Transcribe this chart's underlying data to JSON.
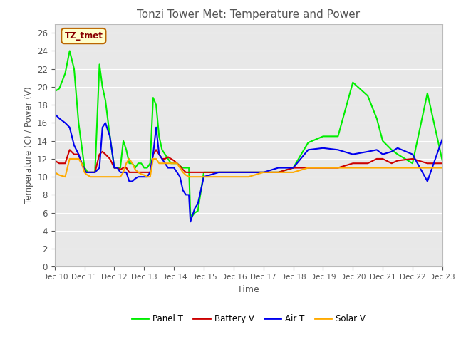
{
  "title": "Tonzi Tower Met: Temperature and Power",
  "xlabel": "Time",
  "ylabel": "Temperature (C) / Power (V)",
  "annotation_text": "TZ_tmet",
  "ylim": [
    0,
    27
  ],
  "xlim": [
    0,
    13
  ],
  "yticks": [
    0,
    2,
    4,
    6,
    8,
    10,
    12,
    14,
    16,
    18,
    20,
    22,
    24,
    26
  ],
  "x_labels": [
    "Dec 10",
    "Dec 11",
    "Dec 12",
    "Dec 13",
    "Dec 14",
    "Dec 15",
    "Dec 16",
    "Dec 17",
    "Dec 18",
    "Dec 19",
    "Dec 20",
    "Dec 21",
    "Dec 22",
    "Dec 23"
  ],
  "fig_bg_color": "#ffffff",
  "plot_bg_color": "#e8e8e8",
  "grid_color": "#ffffff",
  "title_color": "#555555",
  "label_color": "#555555",
  "tick_color": "#555555",
  "series": {
    "Panel T": {
      "color": "#00ee00",
      "linewidth": 1.5,
      "x": [
        0.0,
        0.15,
        0.35,
        0.5,
        0.65,
        0.8,
        0.9,
        1.0,
        1.05,
        1.1,
        1.2,
        1.35,
        1.5,
        1.6,
        1.7,
        1.85,
        2.0,
        2.1,
        2.2,
        2.3,
        2.4,
        2.5,
        2.6,
        2.7,
        2.8,
        2.9,
        3.0,
        3.1,
        3.2,
        3.3,
        3.4,
        3.5,
        3.6,
        3.7,
        3.8,
        3.9,
        4.0,
        4.1,
        4.2,
        4.3,
        4.4,
        4.5,
        4.55,
        4.6,
        4.7,
        4.8,
        5.0,
        5.5,
        6.0,
        6.5,
        7.0,
        7.5,
        8.0,
        8.5,
        9.0,
        9.5,
        10.0,
        10.5,
        10.8,
        11.0,
        11.3,
        11.5,
        12.0,
        12.5,
        13.0
      ],
      "y": [
        19.5,
        19.8,
        21.5,
        24.0,
        22.0,
        16.0,
        13.5,
        11.0,
        10.8,
        10.5,
        10.5,
        10.5,
        22.5,
        20.0,
        18.5,
        14.5,
        11.0,
        11.0,
        11.0,
        14.0,
        13.0,
        11.5,
        11.5,
        11.0,
        11.5,
        11.5,
        11.0,
        11.0,
        11.5,
        18.8,
        18.0,
        14.5,
        13.0,
        12.5,
        12.0,
        11.5,
        11.5,
        11.5,
        11.2,
        11.0,
        11.0,
        11.0,
        5.8,
        5.6,
        6.0,
        6.2,
        10.5,
        10.5,
        10.5,
        10.5,
        10.5,
        10.5,
        11.0,
        13.8,
        14.5,
        14.5,
        20.5,
        19.0,
        16.5,
        14.0,
        13.0,
        12.5,
        11.5,
        19.3,
        11.8
      ]
    },
    "Battery V": {
      "color": "#cc0000",
      "linewidth": 1.5,
      "x": [
        0.0,
        0.15,
        0.35,
        0.5,
        0.65,
        0.8,
        0.9,
        1.0,
        1.05,
        1.1,
        1.2,
        1.35,
        1.5,
        1.6,
        1.7,
        1.85,
        2.0,
        2.1,
        2.2,
        2.3,
        2.4,
        2.5,
        2.6,
        2.7,
        2.8,
        2.9,
        3.0,
        3.1,
        3.2,
        3.3,
        3.4,
        3.5,
        3.6,
        3.7,
        3.8,
        3.9,
        4.0,
        4.1,
        4.2,
        4.3,
        4.4,
        4.5,
        4.55,
        4.6,
        4.7,
        4.8,
        5.0,
        5.5,
        6.0,
        6.5,
        7.0,
        7.5,
        8.0,
        8.5,
        9.0,
        9.5,
        10.0,
        10.5,
        10.8,
        11.0,
        11.3,
        11.5,
        12.0,
        12.5,
        13.0
      ],
      "y": [
        11.8,
        11.5,
        11.5,
        13.0,
        12.5,
        12.5,
        11.5,
        10.8,
        10.5,
        10.5,
        10.5,
        10.5,
        12.5,
        12.8,
        12.5,
        12.0,
        11.0,
        11.0,
        10.8,
        11.0,
        11.0,
        10.5,
        10.5,
        10.5,
        10.5,
        10.5,
        10.5,
        10.5,
        10.5,
        12.5,
        13.0,
        12.5,
        12.0,
        12.0,
        12.2,
        12.0,
        11.8,
        11.5,
        11.2,
        10.8,
        10.5,
        10.5,
        10.5,
        10.5,
        10.5,
        10.5,
        10.5,
        10.5,
        10.5,
        10.5,
        10.5,
        10.5,
        11.0,
        11.0,
        11.0,
        11.0,
        11.5,
        11.5,
        12.0,
        12.0,
        11.5,
        11.8,
        12.0,
        11.5,
        11.5
      ]
    },
    "Air T": {
      "color": "#0000ee",
      "linewidth": 1.5,
      "x": [
        0.0,
        0.15,
        0.35,
        0.5,
        0.65,
        0.8,
        0.9,
        1.0,
        1.05,
        1.1,
        1.2,
        1.35,
        1.5,
        1.6,
        1.7,
        1.85,
        2.0,
        2.1,
        2.2,
        2.3,
        2.4,
        2.5,
        2.6,
        2.7,
        2.8,
        2.9,
        3.0,
        3.1,
        3.2,
        3.3,
        3.4,
        3.5,
        3.6,
        3.7,
        3.8,
        3.9,
        4.0,
        4.1,
        4.2,
        4.3,
        4.4,
        4.5,
        4.55,
        4.6,
        4.7,
        4.8,
        5.0,
        5.5,
        6.0,
        6.5,
        7.0,
        7.5,
        8.0,
        8.5,
        9.0,
        9.5,
        10.0,
        10.5,
        10.8,
        11.0,
        11.3,
        11.5,
        12.0,
        12.5,
        13.0
      ],
      "y": [
        17.0,
        16.5,
        16.0,
        15.5,
        13.5,
        12.5,
        11.5,
        10.8,
        10.5,
        10.5,
        10.5,
        10.5,
        11.0,
        15.5,
        16.0,
        14.5,
        11.0,
        11.0,
        10.5,
        10.5,
        10.5,
        9.5,
        9.5,
        9.8,
        10.0,
        10.0,
        10.0,
        10.0,
        10.5,
        12.5,
        15.5,
        12.5,
        12.0,
        11.5,
        11.0,
        11.0,
        11.0,
        10.5,
        10.0,
        8.5,
        8.0,
        8.0,
        5.0,
        5.5,
        6.5,
        7.0,
        10.0,
        10.5,
        10.5,
        10.5,
        10.5,
        11.0,
        11.0,
        13.0,
        13.2,
        13.0,
        12.5,
        12.8,
        13.0,
        12.5,
        12.8,
        13.2,
        12.5,
        9.5,
        14.2
      ]
    },
    "Solar V": {
      "color": "#ffaa00",
      "linewidth": 1.5,
      "x": [
        0.0,
        0.15,
        0.35,
        0.5,
        0.65,
        0.8,
        0.9,
        1.0,
        1.05,
        1.1,
        1.2,
        1.35,
        1.5,
        1.6,
        1.7,
        1.85,
        2.0,
        2.1,
        2.2,
        2.3,
        2.4,
        2.5,
        2.6,
        2.7,
        2.8,
        2.9,
        3.0,
        3.1,
        3.2,
        3.3,
        3.4,
        3.5,
        3.6,
        3.7,
        3.8,
        3.9,
        4.0,
        4.1,
        4.2,
        4.3,
        4.4,
        4.5,
        4.55,
        4.6,
        4.7,
        4.8,
        5.0,
        5.5,
        6.0,
        6.5,
        7.0,
        7.5,
        8.0,
        8.5,
        9.0,
        9.5,
        10.0,
        10.5,
        10.8,
        11.0,
        11.3,
        11.5,
        12.0,
        12.5,
        13.0
      ],
      "y": [
        10.5,
        10.2,
        10.0,
        12.0,
        12.0,
        12.0,
        11.5,
        10.5,
        10.3,
        10.2,
        10.0,
        10.0,
        10.0,
        10.0,
        10.0,
        10.0,
        10.0,
        10.0,
        10.0,
        10.5,
        11.5,
        12.0,
        11.5,
        10.8,
        10.5,
        10.3,
        10.2,
        10.0,
        10.0,
        12.0,
        12.0,
        11.5,
        11.5,
        11.5,
        11.5,
        11.5,
        11.5,
        11.5,
        11.0,
        10.5,
        10.2,
        10.0,
        10.0,
        10.0,
        10.0,
        10.0,
        10.0,
        10.0,
        10.0,
        10.0,
        10.5,
        10.5,
        10.5,
        11.0,
        11.0,
        11.0,
        11.0,
        11.0,
        11.0,
        11.0,
        11.0,
        11.0,
        11.0,
        11.0,
        11.0
      ]
    }
  }
}
